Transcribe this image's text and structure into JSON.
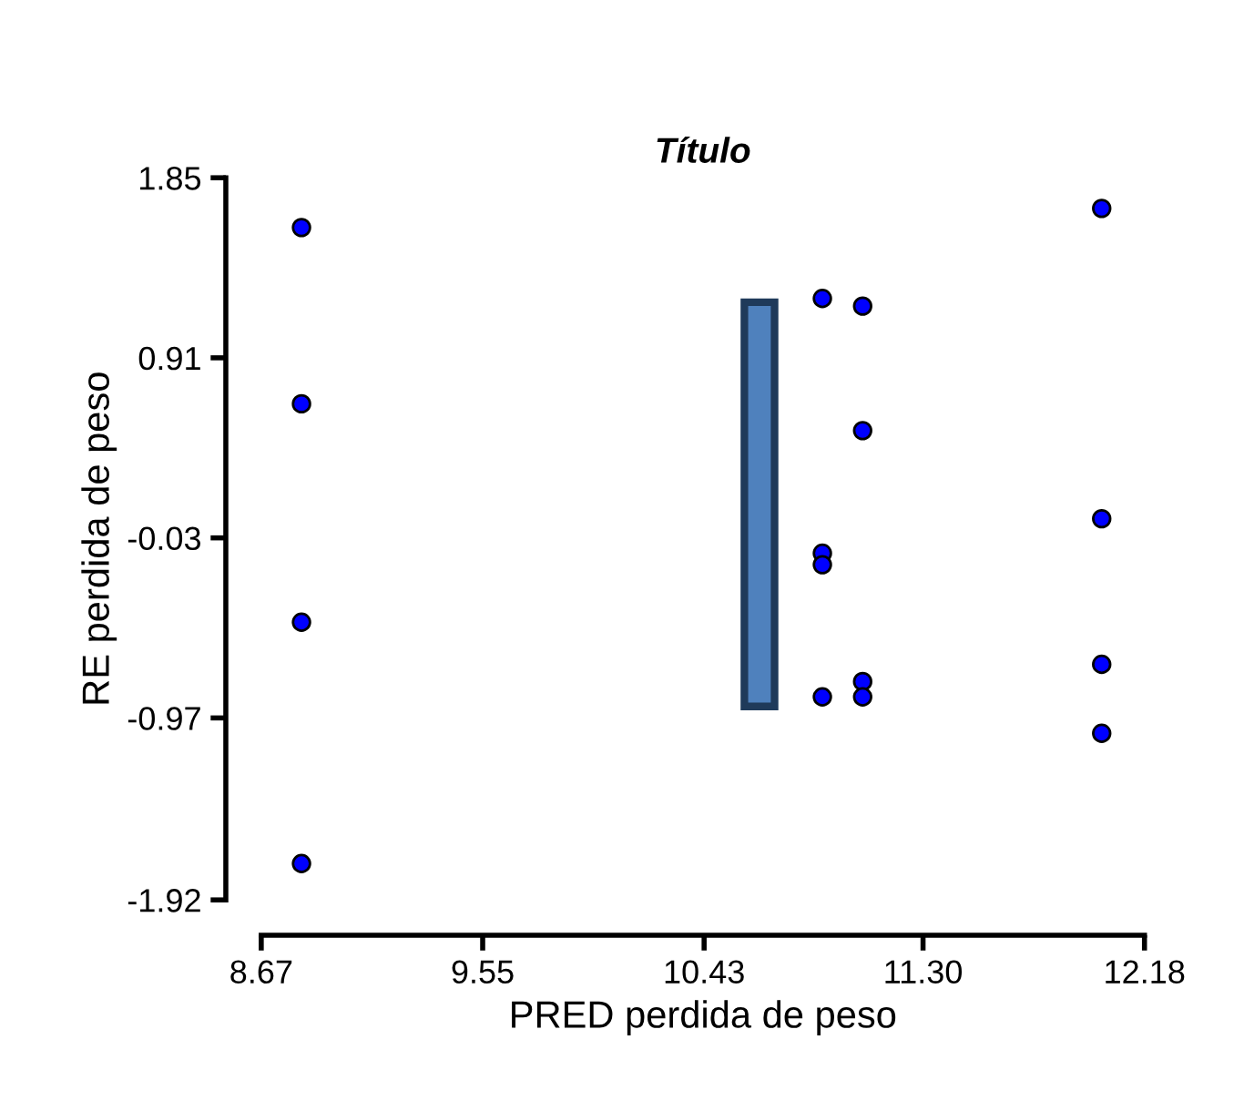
{
  "chart_data": {
    "type": "scatter",
    "title": "Título",
    "xlabel": "PRED perdida de peso",
    "ylabel": "RE perdida de peso",
    "xlim": [
      8.67,
      12.18
    ],
    "xticks": [
      {
        "value": 8.67,
        "label": "8.67"
      },
      {
        "value": 9.55,
        "label": "9.55"
      },
      {
        "value": 10.43,
        "label": "10.43"
      },
      {
        "value": 11.3,
        "label": "11.30"
      },
      {
        "value": 12.18,
        "label": "12.18"
      }
    ],
    "ylim": [
      -1.92,
      1.85
    ],
    "yticks": [
      1.85,
      0.91,
      -0.03,
      -0.97,
      -1.92
    ],
    "grid": false,
    "marker": "circle",
    "series": [
      {
        "type": "bar",
        "color": "#4f81bd",
        "x": [
          10.65
        ],
        "base": [
          -0.91
        ],
        "values": [
          2.11
        ]
      },
      {
        "color": "#0000ff",
        "x": [
          8.83,
          8.83,
          8.83,
          8.83,
          10.9,
          11.06,
          11.06,
          10.9,
          10.9,
          10.9,
          11.06,
          11.06,
          12.01,
          12.01,
          12.01,
          12.01
        ],
        "values": [
          1.59,
          0.67,
          -0.47,
          -1.73,
          1.22,
          1.18,
          0.53,
          -0.11,
          -0.17,
          -0.86,
          -0.78,
          -0.86,
          1.69,
          0.07,
          -0.69,
          -1.05
        ]
      }
    ]
  }
}
